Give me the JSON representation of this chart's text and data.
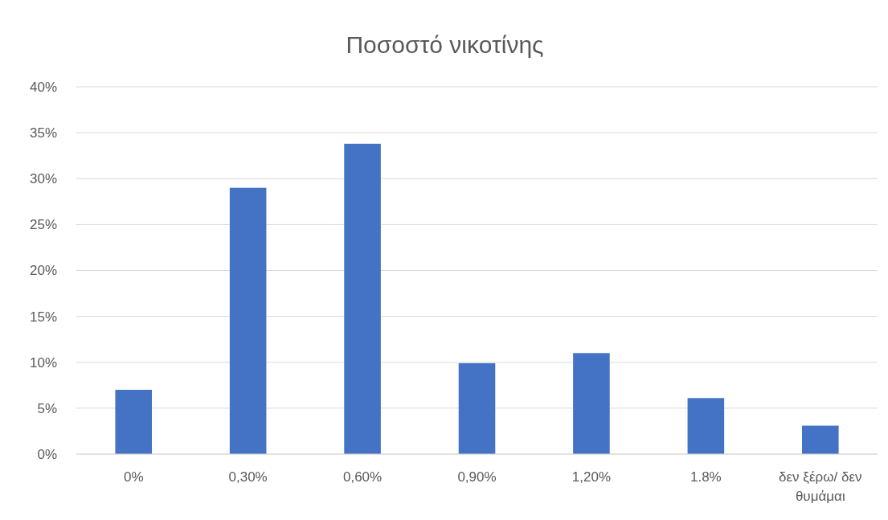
{
  "chart_data": {
    "type": "bar",
    "title": "Ποσοστό νικοτίνης",
    "categories": [
      "0%",
      "0,30%",
      "0,60%",
      "0,90%",
      "1,20%",
      "1.8%",
      "δεν ξέρω/ δεν θυμάμαι"
    ],
    "values": [
      7,
      29,
      33.8,
      9.9,
      11,
      6.1,
      3.1
    ],
    "color": "#4472c4",
    "ylim": [
      0,
      40
    ],
    "yticks": [
      {
        "value": 0,
        "label": "0%"
      },
      {
        "value": 5,
        "label": "5%"
      },
      {
        "value": 10,
        "label": "10%"
      },
      {
        "value": 15,
        "label": "15%"
      },
      {
        "value": 20,
        "label": "20%"
      },
      {
        "value": 25,
        "label": "25%"
      },
      {
        "value": 30,
        "label": "30%"
      },
      {
        "value": 35,
        "label": "35%"
      },
      {
        "value": 40,
        "label": "40%"
      }
    ],
    "grid": "y"
  }
}
